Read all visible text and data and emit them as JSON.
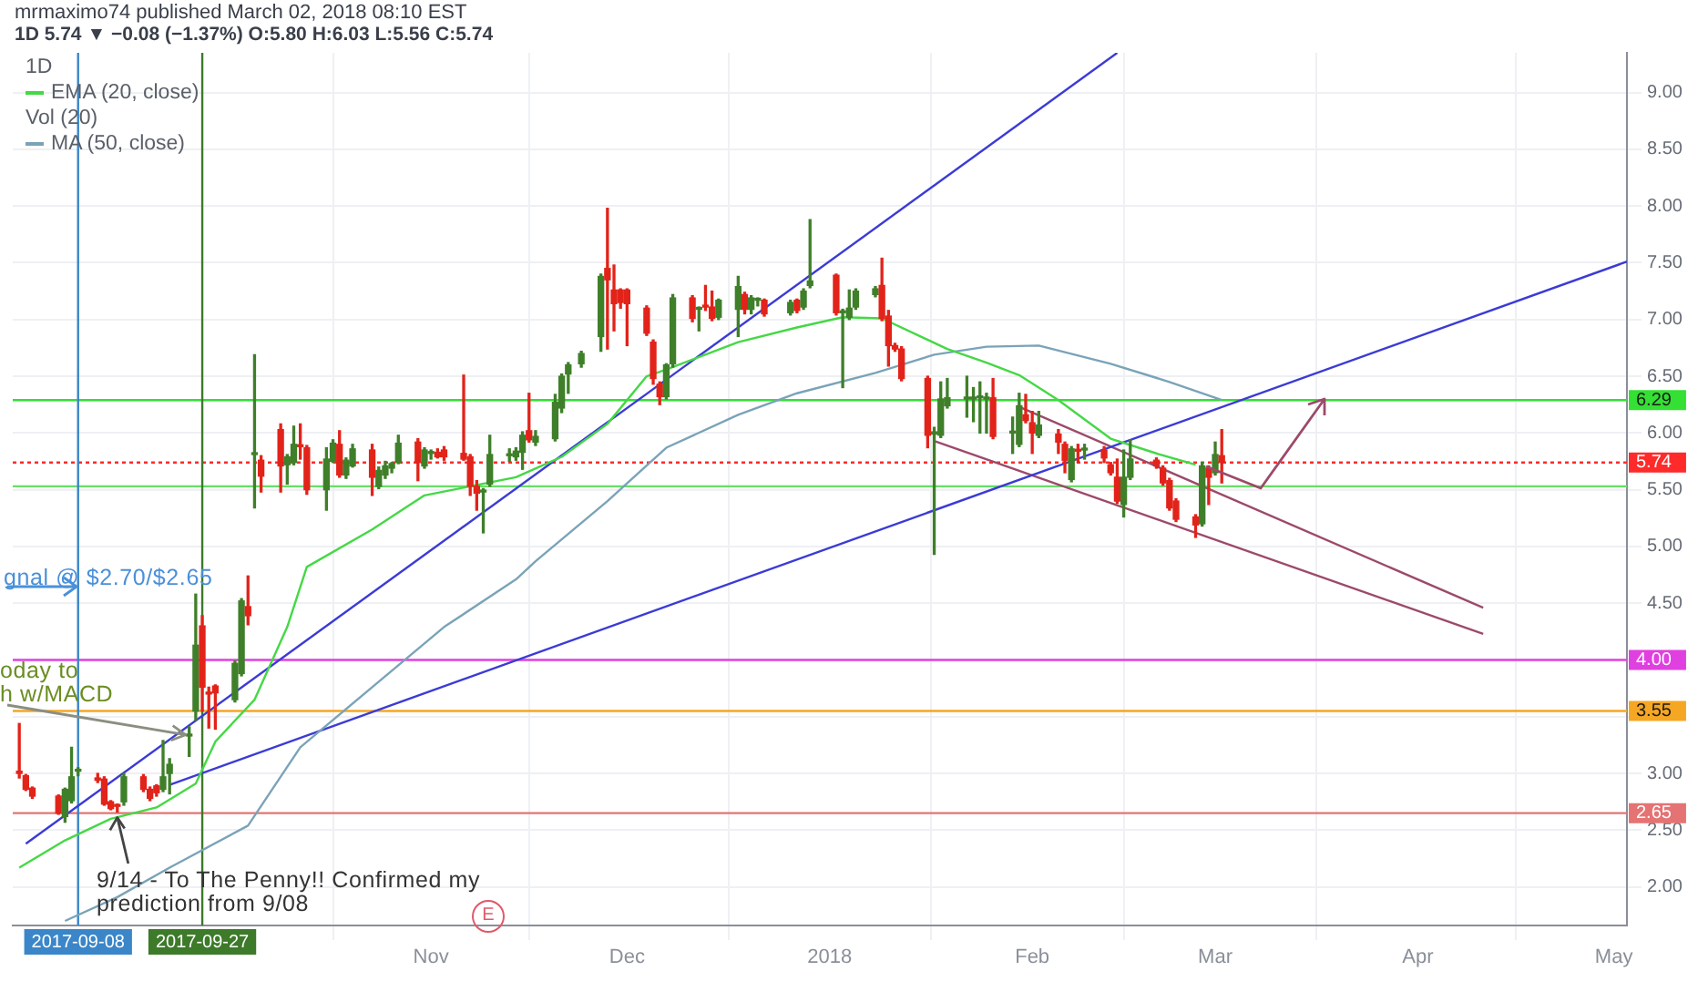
{
  "chart_data": {
    "type": "candlestick",
    "title": "mrmaximo74 published March 02, 2018 08:10 EST",
    "subtitle": "1D 5.74 ▼ −0.08 (−1.37%) O:5.80 H:6.03 L:5.56 C:5.74",
    "x": [
      "2017-08-30",
      "2017-08-31",
      "2017-09-01",
      "2017-09-05",
      "2017-09-06",
      "2017-09-07",
      "2017-09-08",
      "2017-09-11",
      "2017-09-12",
      "2017-09-13",
      "2017-09-14",
      "2017-09-15",
      "2017-09-18",
      "2017-09-19",
      "2017-09-20",
      "2017-09-21",
      "2017-09-22",
      "2017-09-25",
      "2017-09-26",
      "2017-09-27",
      "2017-09-28",
      "2017-09-29",
      "2017-10-02",
      "2017-10-03",
      "2017-10-04",
      "2017-10-05",
      "2017-10-06",
      "2017-10-09",
      "2017-10-10",
      "2017-10-11",
      "2017-10-12",
      "2017-10-13",
      "2017-10-16",
      "2017-10-17",
      "2017-10-18",
      "2017-10-19",
      "2017-10-20",
      "2017-10-23",
      "2017-10-24",
      "2017-10-25",
      "2017-10-26",
      "2017-10-27",
      "2017-10-30",
      "2017-10-31",
      "2017-11-01",
      "2017-11-02",
      "2017-11-03",
      "2017-11-06",
      "2017-11-07",
      "2017-11-08",
      "2017-11-09",
      "2017-11-10",
      "2017-11-13",
      "2017-11-14",
      "2017-11-15",
      "2017-11-16",
      "2017-11-17",
      "2017-11-20",
      "2017-11-21",
      "2017-11-22",
      "2017-11-24",
      "2017-11-27",
      "2017-11-28",
      "2017-11-29",
      "2017-11-30",
      "2017-12-01",
      "2017-12-04",
      "2017-12-05",
      "2017-12-06",
      "2017-12-07",
      "2017-12-08",
      "2017-12-11",
      "2017-12-12",
      "2017-12-13",
      "2017-12-14",
      "2017-12-15",
      "2017-12-18",
      "2017-12-19",
      "2017-12-20",
      "2017-12-21",
      "2017-12-22",
      "2017-12-26",
      "2017-12-27",
      "2017-12-28",
      "2017-12-29",
      "2018-01-02",
      "2018-01-03",
      "2018-01-04",
      "2018-01-05",
      "2018-01-08",
      "2018-01-09",
      "2018-01-10",
      "2018-01-11",
      "2018-01-12",
      "2018-01-16",
      "2018-01-17",
      "2018-01-18",
      "2018-01-19",
      "2018-01-22",
      "2018-01-23",
      "2018-01-24",
      "2018-01-25",
      "2018-01-26",
      "2018-01-29",
      "2018-01-30",
      "2018-01-31",
      "2018-02-01",
      "2018-02-02",
      "2018-02-05",
      "2018-02-06",
      "2018-02-07",
      "2018-02-08",
      "2018-02-09",
      "2018-02-12",
      "2018-02-13",
      "2018-02-14",
      "2018-02-15",
      "2018-02-16",
      "2018-02-20",
      "2018-02-21",
      "2018-02-22",
      "2018-02-23",
      "2018-02-26",
      "2018-02-27",
      "2018-02-28",
      "2018-03-01",
      "2018-03-02"
    ],
    "ohlc": [
      [
        3.02,
        3.44,
        2.96,
        3.0
      ],
      [
        2.98,
        2.99,
        2.85,
        2.86
      ],
      [
        2.87,
        2.88,
        2.78,
        2.8
      ],
      [
        2.8,
        2.81,
        2.64,
        2.65
      ],
      [
        2.62,
        2.87,
        2.57,
        2.86
      ],
      [
        2.76,
        3.23,
        2.74,
        2.97
      ],
      [
        3.02,
        3.05,
        2.98,
        3.03
      ],
      [
        2.96,
        3.0,
        2.92,
        2.94
      ],
      [
        2.95,
        2.97,
        2.72,
        2.73
      ],
      [
        2.75,
        2.76,
        2.68,
        2.69
      ],
      [
        2.72,
        2.73,
        2.66,
        2.71
      ],
      [
        2.75,
        3.0,
        2.72,
        2.97
      ],
      [
        2.97,
        2.99,
        2.84,
        2.86
      ],
      [
        2.86,
        2.88,
        2.76,
        2.78
      ],
      [
        2.89,
        2.9,
        2.8,
        2.83
      ],
      [
        2.86,
        3.29,
        2.84,
        2.97
      ],
      [
        3.0,
        3.13,
        2.82,
        3.08
      ],
      [
        3.33,
        3.41,
        3.15,
        3.34
      ],
      [
        3.55,
        4.58,
        3.47,
        4.13
      ],
      [
        4.3,
        4.39,
        3.55,
        3.76
      ],
      [
        3.71,
        3.76,
        3.4,
        3.7
      ],
      [
        3.77,
        3.78,
        3.39,
        3.71
      ],
      [
        3.65,
        3.99,
        3.63,
        3.97
      ],
      [
        3.88,
        4.54,
        3.86,
        4.52
      ],
      [
        4.47,
        4.74,
        4.31,
        4.39
      ],
      [
        5.81,
        6.69,
        5.34,
        5.82
      ],
      [
        5.76,
        5.8,
        5.48,
        5.62
      ],
      [
        6.03,
        6.08,
        5.48,
        5.71
      ],
      [
        5.72,
        5.81,
        5.55,
        5.79
      ],
      [
        5.74,
        6.06,
        5.72,
        5.9
      ],
      [
        5.89,
        6.08,
        5.77,
        5.88
      ],
      [
        5.87,
        5.89,
        5.46,
        5.5
      ],
      [
        5.5,
        5.87,
        5.32,
        5.77
      ],
      [
        5.75,
        5.94,
        5.74,
        5.91
      ],
      [
        5.9,
        6.02,
        5.61,
        5.63
      ],
      [
        5.63,
        5.78,
        5.6,
        5.76
      ],
      [
        5.71,
        5.9,
        5.7,
        5.86
      ],
      [
        5.85,
        5.9,
        5.45,
        5.61
      ],
      [
        5.53,
        5.7,
        5.51,
        5.67
      ],
      [
        5.63,
        5.75,
        5.6,
        5.71
      ],
      [
        5.69,
        5.74,
        5.65,
        5.73
      ],
      [
        5.74,
        5.98,
        5.73,
        5.91
      ],
      [
        5.92,
        5.95,
        5.58,
        5.74
      ],
      [
        5.71,
        5.87,
        5.69,
        5.85
      ],
      [
        5.82,
        5.85,
        5.77,
        5.82
      ],
      [
        5.83,
        5.86,
        5.78,
        5.79
      ],
      [
        5.85,
        5.88,
        5.76,
        5.79
      ],
      [
        5.82,
        6.51,
        5.76,
        5.77
      ],
      [
        5.79,
        5.81,
        5.45,
        5.53
      ],
      [
        5.53,
        5.58,
        5.32,
        5.47
      ],
      [
        5.48,
        5.51,
        5.12,
        5.48
      ],
      [
        5.55,
        5.98,
        5.53,
        5.81
      ],
      [
        5.8,
        5.86,
        5.75,
        5.81
      ],
      [
        5.79,
        5.87,
        5.76,
        5.84
      ],
      [
        5.83,
        6.01,
        5.68,
        5.98
      ],
      [
        6.02,
        6.35,
        5.92,
        5.94
      ],
      [
        5.92,
        6.02,
        5.89,
        5.97
      ],
      [
        5.95,
        6.34,
        5.93,
        6.27
      ],
      [
        6.22,
        6.52,
        6.18,
        6.5
      ],
      [
        6.52,
        6.62,
        6.35,
        6.6
      ],
      [
        6.61,
        6.72,
        6.58,
        6.7
      ],
      [
        6.85,
        7.4,
        6.72,
        7.38
      ],
      [
        7.45,
        7.98,
        6.74,
        7.35
      ],
      [
        7.26,
        7.48,
        6.9,
        7.14
      ],
      [
        7.26,
        7.27,
        7.1,
        7.15
      ],
      [
        7.26,
        7.27,
        6.77,
        7.14
      ],
      [
        7.1,
        7.12,
        6.86,
        6.88
      ],
      [
        6.8,
        6.82,
        6.43,
        6.48
      ],
      [
        6.43,
        6.45,
        6.25,
        6.32
      ],
      [
        6.32,
        6.61,
        6.3,
        6.6
      ],
      [
        6.61,
        7.22,
        6.58,
        7.19
      ],
      [
        7.19,
        7.21,
        6.98,
        7.01
      ],
      [
        7.09,
        7.11,
        6.9,
        7.1
      ],
      [
        7.12,
        7.3,
        7.08,
        7.11
      ],
      [
        7.11,
        7.25,
        6.99,
        7.01
      ],
      [
        7.02,
        7.18,
        7.0,
        7.17
      ],
      [
        7.09,
        7.38,
        6.85,
        7.29
      ],
      [
        7.22,
        7.24,
        7.05,
        7.09
      ],
      [
        7.09,
        7.21,
        7.05,
        7.19
      ],
      [
        7.17,
        7.19,
        7.12,
        7.17
      ],
      [
        7.17,
        7.18,
        7.03,
        7.05
      ],
      [
        7.06,
        7.17,
        7.04,
        7.15
      ],
      [
        7.17,
        7.18,
        7.06,
        7.08
      ],
      [
        7.11,
        7.27,
        7.09,
        7.25
      ],
      [
        7.3,
        7.88,
        7.28,
        7.34
      ],
      [
        7.39,
        7.4,
        7.04,
        7.06
      ],
      [
        7.06,
        7.09,
        6.4,
        7.07
      ],
      [
        7.02,
        7.26,
        7.0,
        7.1
      ],
      [
        7.11,
        7.27,
        7.09,
        7.25
      ],
      [
        7.22,
        7.29,
        7.2,
        7.27
      ],
      [
        7.3,
        7.54,
        6.99,
        7.01
      ],
      [
        7.03,
        7.08,
        6.59,
        6.77
      ],
      [
        6.77,
        6.79,
        6.72,
        6.74
      ],
      [
        6.74,
        6.76,
        6.46,
        6.48
      ],
      [
        6.48,
        6.5,
        5.87,
        5.98
      ],
      [
        5.99,
        6.05,
        4.93,
        6.01
      ],
      [
        5.98,
        6.45,
        5.96,
        6.3
      ],
      [
        6.24,
        6.48,
        6.22,
        6.31
      ],
      [
        6.3,
        6.5,
        6.14,
        6.3
      ],
      [
        6.3,
        6.4,
        6.1,
        6.31
      ],
      [
        6.31,
        6.45,
        6.0,
        6.31
      ],
      [
        6.3,
        6.35,
        6.0,
        6.3
      ],
      [
        6.31,
        6.48,
        5.95,
        5.97
      ],
      [
        6.0,
        6.14,
        5.82,
        6.0
      ],
      [
        5.9,
        6.35,
        5.88,
        6.24
      ],
      [
        6.16,
        6.34,
        6.09,
        6.11
      ],
      [
        6.09,
        6.19,
        5.82,
        6.0
      ],
      [
        5.98,
        6.19,
        5.96,
        6.07
      ],
      [
        5.99,
        6.03,
        5.82,
        5.92
      ],
      [
        5.9,
        5.92,
        5.65,
        5.76
      ],
      [
        5.59,
        5.88,
        5.57,
        5.86
      ],
      [
        5.85,
        5.9,
        5.74,
        5.84
      ],
      [
        5.85,
        5.9,
        5.77,
        5.85
      ],
      [
        5.85,
        5.88,
        5.74,
        5.78
      ],
      [
        5.72,
        5.74,
        5.63,
        5.65
      ],
      [
        5.61,
        5.77,
        5.38,
        5.4
      ],
      [
        5.37,
        5.85,
        5.26,
        5.61
      ],
      [
        5.61,
        5.94,
        5.59,
        5.77
      ],
      [
        5.76,
        5.78,
        5.69,
        5.71
      ],
      [
        5.69,
        5.71,
        5.54,
        5.56
      ],
      [
        5.58,
        5.6,
        5.32,
        5.34
      ],
      [
        5.4,
        5.42,
        5.22,
        5.24
      ],
      [
        5.26,
        5.28,
        5.08,
        5.19
      ],
      [
        5.2,
        5.74,
        5.18,
        5.71
      ],
      [
        5.69,
        5.71,
        5.37,
        5.61
      ],
      [
        5.65,
        5.92,
        5.63,
        5.81
      ],
      [
        5.8,
        6.03,
        5.56,
        5.74
      ]
    ],
    "series": [
      {
        "name": "EMA (20, close)",
        "type": "line",
        "color": "#45d845",
        "x": [
          "2017-08-30",
          "2017-09-06",
          "2017-09-13",
          "2017-09-20",
          "2017-09-26",
          "2017-09-29",
          "2017-10-05",
          "2017-10-10",
          "2017-10-13",
          "2017-10-23",
          "2017-10-31",
          "2017-11-07",
          "2017-11-14",
          "2017-11-21",
          "2017-11-28",
          "2017-12-04",
          "2017-12-07",
          "2017-12-18",
          "2017-12-27",
          "2018-01-03",
          "2018-01-09",
          "2018-01-19",
          "2018-01-25",
          "2018-01-30",
          "2018-02-05",
          "2018-02-13",
          "2018-02-20",
          "2018-02-26"
        ],
        "values": [
          2.17,
          2.41,
          2.6,
          2.7,
          2.91,
          3.28,
          3.65,
          4.29,
          4.82,
          5.15,
          5.45,
          5.53,
          5.61,
          5.79,
          6.08,
          6.5,
          6.56,
          6.8,
          6.93,
          7.02,
          7.01,
          6.74,
          6.62,
          6.51,
          6.29,
          5.95,
          5.82,
          5.72
        ]
      },
      {
        "name": "MA (50, close)",
        "type": "line",
        "color": "#7aa3b8",
        "x": [
          "2017-09-06",
          "2017-09-14",
          "2017-09-22",
          "2017-10-04",
          "2017-10-12",
          "2017-10-23",
          "2017-11-03",
          "2017-11-14",
          "2017-11-17",
          "2017-11-28",
          "2017-12-07",
          "2017-12-18",
          "2017-12-27",
          "2018-01-08",
          "2018-01-17",
          "2018-01-25",
          "2018-02-02",
          "2018-02-13",
          "2018-02-22",
          "2018-03-02"
        ],
        "values": [
          1.7,
          1.91,
          2.17,
          2.54,
          3.23,
          3.76,
          4.29,
          4.71,
          4.87,
          5.4,
          5.87,
          6.16,
          6.35,
          6.53,
          6.69,
          6.76,
          6.77,
          6.61,
          6.45,
          6.29
        ]
      },
      {
        "type": "line",
        "color": "#3b3bd6",
        "x": [
          "2017-08-31",
          "2018-02-14"
        ],
        "values": [
          2.38,
          9.35
        ]
      },
      {
        "type": "line",
        "color": "#3b3bd6",
        "x": [
          "2017-09-22",
          "2018-05-03"
        ],
        "values": [
          2.9,
          7.51
        ]
      },
      {
        "type": "line",
        "color": "#9c4a6a",
        "x": [
          "2018-01-30",
          "2018-04-11"
        ],
        "values": [
          6.23,
          4.46
        ]
      },
      {
        "type": "line",
        "color": "#9c4a6a",
        "x": [
          "2018-01-17",
          "2018-04-11"
        ],
        "values": [
          5.93,
          4.23
        ]
      }
    ],
    "xlim": [
      "2017-08-29",
      "2018-05-03"
    ],
    "xticks": [
      {
        "value": "2017-11-01",
        "label": "Nov"
      },
      {
        "value": "2017-12-01",
        "label": "Dec"
      },
      {
        "value": "2018-01-01",
        "label": "2018"
      },
      {
        "value": "2018-02-01",
        "label": "Feb"
      },
      {
        "value": "2018-03-01",
        "label": "Mar"
      },
      {
        "value": "2018-04-01",
        "label": "Apr"
      },
      {
        "value": "2018-05-01",
        "label": "May"
      }
    ],
    "ylim": [
      1.66,
      9.35
    ],
    "yticks": [
      {
        "value": 2,
        "label": "2.00"
      },
      {
        "value": 2.5,
        "label": "2.50"
      },
      {
        "value": 3,
        "label": "3.00"
      },
      {
        "value": 3.5,
        "label": null
      },
      {
        "value": 4,
        "label": null
      },
      {
        "value": 4.5,
        "label": "4.50"
      },
      {
        "value": 5,
        "label": "5.00"
      },
      {
        "value": 5.5,
        "label": "5.50"
      },
      {
        "value": 6,
        "label": "6.00"
      },
      {
        "value": 6.5,
        "label": "6.50"
      },
      {
        "value": 7,
        "label": "7.00"
      },
      {
        "value": 7.5,
        "label": "7.50"
      },
      {
        "value": 8,
        "label": "8.00"
      },
      {
        "value": 8.5,
        "label": "8.50"
      },
      {
        "value": 9,
        "label": "9.00"
      }
    ],
    "ref_lines": [
      {
        "axis": "y",
        "value": 6.29,
        "label": "6.29",
        "color": "#33e033"
      },
      {
        "axis": "y",
        "value": 5.74,
        "label": "5.74",
        "color": "#ff2a2a",
        "line_style": "dotted"
      },
      {
        "axis": "y",
        "value": 5.53,
        "color": "#66e066"
      },
      {
        "axis": "y",
        "value": 4.0,
        "label": "4.00",
        "color": "#e040e0"
      },
      {
        "axis": "y",
        "value": 3.55,
        "label": "3.55",
        "color": "#f5a623"
      },
      {
        "axis": "y",
        "value": 2.65,
        "label": "2.65",
        "color": "#e57373"
      },
      {
        "axis": "x",
        "value": "2017-09-08",
        "label": "2017-09-08",
        "color": "#3a86c8"
      },
      {
        "axis": "x",
        "value": "2017-09-27",
        "label": "2017-09-27",
        "color": "#3d7a2a"
      }
    ],
    "annotations": [
      "1D",
      "Vol (20)",
      "gnal @ $2.70/$2.65",
      {
        "text": "oday to\nh w/MACD",
        "x": "2017-09-25",
        "y": 3.34
      },
      {
        "text": "9/14 - To The Penny!! Confirmed my\nprediction from 9/08",
        "x": "2017-09-14",
        "y": 2.66
      },
      "E"
    ],
    "grid": true,
    "legend": "top left"
  }
}
